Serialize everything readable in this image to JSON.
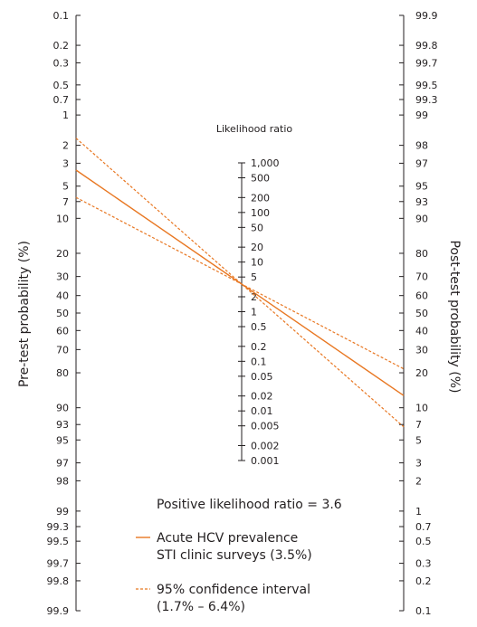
{
  "chart_data": {
    "type": "line",
    "subtype": "fagan-nomogram",
    "left_axis": {
      "label": "Pre-test probability (%)",
      "ticks": [
        "0.1",
        "0.2",
        "0.3",
        "0.5",
        "0.7",
        "1",
        "2",
        "3",
        "5",
        "7",
        "10",
        "20",
        "30",
        "40",
        "50",
        "60",
        "70",
        "80",
        "90",
        "93",
        "95",
        "97",
        "98",
        "99",
        "99.3",
        "99.5",
        "99.7",
        "99.8",
        "99.9"
      ]
    },
    "center_axis": {
      "label": "Likelihood ratio",
      "ticks": [
        "1,000",
        "500",
        "200",
        "100",
        "50",
        "20",
        "10",
        "5",
        "2",
        "1",
        "0.5",
        "0.2",
        "0.1",
        "0.05",
        "0.02",
        "0.01",
        "0.005",
        "0.002",
        "0.001"
      ]
    },
    "right_axis": {
      "label": "Post-test probability (%)",
      "ticks": [
        "99.9",
        "99.8",
        "99.7",
        "99.5",
        "99.3",
        "99",
        "98",
        "97",
        "95",
        "93",
        "90",
        "80",
        "70",
        "60",
        "50",
        "40",
        "30",
        "20",
        "10",
        "7",
        "5",
        "3",
        "2",
        "1",
        "0.7",
        "0.5",
        "0.3",
        "0.2",
        "0.1"
      ]
    },
    "likelihood_ratio": 3.6,
    "series": [
      {
        "name": "Acute HCV prevalence STI clinic surveys (3.5%)",
        "pretest": 3.5,
        "style": "solid"
      },
      {
        "name": "95% confidence interval (1.7% – 6.4%)",
        "pretest": 1.7,
        "style": "dashed"
      },
      {
        "name": "95% confidence interval (1.7% – 6.4%)",
        "pretest": 6.4,
        "style": "dashed"
      }
    ],
    "line_color": "#e87722",
    "axis_color": "#231f20"
  },
  "annotation": "Positive likelihood ratio = 3.6",
  "legend": {
    "solid_line1": "Acute HCV prevalence",
    "solid_line2": "STI clinic surveys (3.5%)",
    "dashed_line1": "95% confidence interval",
    "dashed_line2": "(1.7% – 6.4%)"
  }
}
